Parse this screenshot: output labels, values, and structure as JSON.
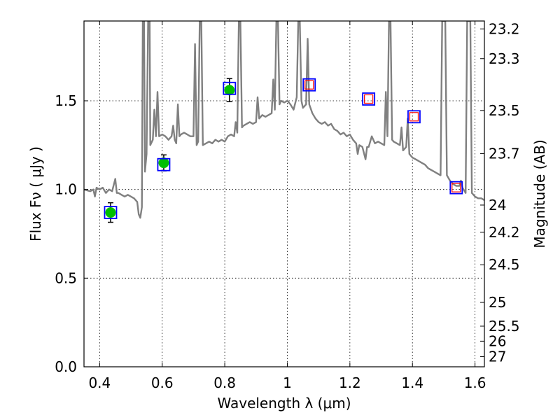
{
  "chart_data": {
    "type": "line",
    "xlabel": "Wavelength  λ (μm)",
    "ylabel": "Flux  Fν  ( μJy )",
    "ylabel_right": "Magnitude (AB)",
    "xlim": [
      0.35,
      1.63
    ],
    "ylim": [
      0.0,
      1.95
    ],
    "grid": true,
    "x_ticks": [
      0.4,
      0.6,
      0.8,
      1.0,
      1.2,
      1.4,
      1.6
    ],
    "x_tick_labels": [
      "0.4",
      "0.6",
      "0.8",
      "1",
      "1.2",
      "1.4",
      "1.6"
    ],
    "y_ticks": [
      0.0,
      0.5,
      1.0,
      1.5
    ],
    "y_tick_labels": [
      "0.0",
      "0.5",
      "1.0",
      "1.5"
    ],
    "right_ticks": [
      {
        "mag": 23.2,
        "label": "23.2"
      },
      {
        "mag": 23.3,
        "label": "23.3"
      },
      {
        "mag": 23.5,
        "label": "23.5"
      },
      {
        "mag": 23.7,
        "label": "23.7"
      },
      {
        "mag": 24.0,
        "label": "24"
      },
      {
        "mag": 24.2,
        "label": "24.2"
      },
      {
        "mag": 24.5,
        "label": "24.5"
      },
      {
        "mag": 25.0,
        "label": "25"
      },
      {
        "mag": 25.5,
        "label": "25.5"
      },
      {
        "mag": 26.0,
        "label": "26"
      },
      {
        "mag": 27.0,
        "label": "27"
      }
    ],
    "series": [
      {
        "type": "line",
        "color": "#808080",
        "points": [
          [
            0.35,
            1.0
          ],
          [
            0.37,
            0.99
          ],
          [
            0.38,
            1.0
          ],
          [
            0.385,
            0.96
          ],
          [
            0.39,
            1.01
          ],
          [
            0.4,
            1.0
          ],
          [
            0.41,
            1.01
          ],
          [
            0.42,
            0.98
          ],
          [
            0.43,
            1.0
          ],
          [
            0.44,
            0.99
          ],
          [
            0.45,
            1.06
          ],
          [
            0.455,
            0.98
          ],
          [
            0.46,
            0.98
          ],
          [
            0.47,
            0.97
          ],
          [
            0.48,
            0.96
          ],
          [
            0.49,
            0.97
          ],
          [
            0.5,
            0.96
          ],
          [
            0.51,
            0.95
          ],
          [
            0.52,
            0.93
          ],
          [
            0.525,
            0.86
          ],
          [
            0.53,
            0.84
          ],
          [
            0.535,
            0.9
          ],
          [
            0.538,
            1.95
          ],
          [
            0.542,
            1.95
          ],
          [
            0.545,
            1.1
          ],
          [
            0.55,
            1.2
          ],
          [
            0.555,
            1.95
          ],
          [
            0.56,
            1.95
          ],
          [
            0.562,
            1.25
          ],
          [
            0.57,
            1.28
          ],
          [
            0.575,
            1.45
          ],
          [
            0.58,
            1.3
          ],
          [
            0.585,
            1.55
          ],
          [
            0.59,
            1.3
          ],
          [
            0.6,
            1.31
          ],
          [
            0.61,
            1.3
          ],
          [
            0.62,
            1.28
          ],
          [
            0.63,
            1.3
          ],
          [
            0.635,
            1.36
          ],
          [
            0.64,
            1.28
          ],
          [
            0.645,
            1.26
          ],
          [
            0.65,
            1.48
          ],
          [
            0.655,
            1.3
          ],
          [
            0.66,
            1.31
          ],
          [
            0.67,
            1.32
          ],
          [
            0.68,
            1.31
          ],
          [
            0.69,
            1.3
          ],
          [
            0.7,
            1.3
          ],
          [
            0.705,
            1.82
          ],
          [
            0.71,
            1.25
          ],
          [
            0.715,
            1.27
          ],
          [
            0.72,
            1.95
          ],
          [
            0.725,
            1.95
          ],
          [
            0.73,
            1.25
          ],
          [
            0.74,
            1.26
          ],
          [
            0.75,
            1.27
          ],
          [
            0.76,
            1.26
          ],
          [
            0.77,
            1.28
          ],
          [
            0.78,
            1.27
          ],
          [
            0.79,
            1.28
          ],
          [
            0.8,
            1.27
          ],
          [
            0.81,
            1.3
          ],
          [
            0.82,
            1.31
          ],
          [
            0.83,
            1.3
          ],
          [
            0.835,
            1.38
          ],
          [
            0.84,
            1.32
          ],
          [
            0.845,
            1.95
          ],
          [
            0.85,
            1.95
          ],
          [
            0.855,
            1.35
          ],
          [
            0.86,
            1.36
          ],
          [
            0.87,
            1.37
          ],
          [
            0.88,
            1.38
          ],
          [
            0.89,
            1.37
          ],
          [
            0.9,
            1.38
          ],
          [
            0.905,
            1.52
          ],
          [
            0.91,
            1.4
          ],
          [
            0.92,
            1.42
          ],
          [
            0.93,
            1.41
          ],
          [
            0.94,
            1.42
          ],
          [
            0.95,
            1.43
          ],
          [
            0.955,
            1.62
          ],
          [
            0.96,
            1.45
          ],
          [
            0.965,
            1.95
          ],
          [
            0.97,
            1.95
          ],
          [
            0.975,
            1.48
          ],
          [
            0.98,
            1.5
          ],
          [
            0.99,
            1.49
          ],
          [
            1.0,
            1.5
          ],
          [
            1.01,
            1.48
          ],
          [
            1.02,
            1.45
          ],
          [
            1.03,
            1.52
          ],
          [
            1.035,
            1.95
          ],
          [
            1.04,
            1.95
          ],
          [
            1.045,
            1.5
          ],
          [
            1.05,
            1.46
          ],
          [
            1.06,
            1.48
          ],
          [
            1.065,
            1.85
          ],
          [
            1.07,
            1.48
          ],
          [
            1.08,
            1.43
          ],
          [
            1.09,
            1.4
          ],
          [
            1.1,
            1.38
          ],
          [
            1.11,
            1.37
          ],
          [
            1.12,
            1.38
          ],
          [
            1.13,
            1.36
          ],
          [
            1.14,
            1.37
          ],
          [
            1.15,
            1.34
          ],
          [
            1.16,
            1.33
          ],
          [
            1.17,
            1.31
          ],
          [
            1.18,
            1.32
          ],
          [
            1.19,
            1.3
          ],
          [
            1.2,
            1.31
          ],
          [
            1.21,
            1.28
          ],
          [
            1.22,
            1.26
          ],
          [
            1.225,
            1.2
          ],
          [
            1.23,
            1.25
          ],
          [
            1.24,
            1.24
          ],
          [
            1.25,
            1.17
          ],
          [
            1.255,
            1.24
          ],
          [
            1.26,
            1.24
          ],
          [
            1.27,
            1.3
          ],
          [
            1.28,
            1.26
          ],
          [
            1.29,
            1.27
          ],
          [
            1.3,
            1.26
          ],
          [
            1.31,
            1.25
          ],
          [
            1.315,
            1.55
          ],
          [
            1.32,
            1.3
          ],
          [
            1.325,
            1.95
          ],
          [
            1.33,
            1.95
          ],
          [
            1.335,
            1.28
          ],
          [
            1.34,
            1.27
          ],
          [
            1.35,
            1.26
          ],
          [
            1.36,
            1.25
          ],
          [
            1.365,
            1.35
          ],
          [
            1.37,
            1.22
          ],
          [
            1.38,
            1.24
          ],
          [
            1.385,
            1.4
          ],
          [
            1.39,
            1.2
          ],
          [
            1.4,
            1.18
          ],
          [
            1.41,
            1.17
          ],
          [
            1.42,
            1.16
          ],
          [
            1.43,
            1.15
          ],
          [
            1.44,
            1.14
          ],
          [
            1.45,
            1.12
          ],
          [
            1.46,
            1.11
          ],
          [
            1.47,
            1.1
          ],
          [
            1.48,
            1.09
          ],
          [
            1.49,
            1.08
          ],
          [
            1.495,
            1.95
          ],
          [
            1.505,
            1.95
          ],
          [
            1.51,
            1.08
          ],
          [
            1.52,
            1.05
          ],
          [
            1.53,
            1.03
          ],
          [
            1.54,
            1.02
          ],
          [
            1.55,
            1.02
          ],
          [
            1.555,
            1.05
          ],
          [
            1.56,
            1.01
          ],
          [
            1.57,
            0.98
          ],
          [
            1.575,
            1.95
          ],
          [
            1.585,
            1.95
          ],
          [
            1.59,
            0.98
          ],
          [
            1.6,
            0.96
          ],
          [
            1.61,
            0.95
          ],
          [
            1.62,
            0.95
          ],
          [
            1.63,
            0.94
          ]
        ]
      },
      {
        "type": "errorbar",
        "marker": "circle",
        "color": "#00bf00",
        "points": [
          {
            "x": 0.435,
            "y": 0.87,
            "yerr": 0.055
          },
          {
            "x": 0.605,
            "y": 1.15,
            "yerr": 0.045
          },
          {
            "x": 0.815,
            "y": 1.56,
            "yerr": 0.065
          }
        ]
      },
      {
        "type": "scatter",
        "marker": "square",
        "color": "#0000ff",
        "points": [
          [
            0.435,
            0.87
          ],
          [
            0.605,
            1.14
          ],
          [
            0.815,
            1.57
          ],
          [
            1.07,
            1.59
          ],
          [
            1.26,
            1.51
          ],
          [
            1.405,
            1.41
          ],
          [
            1.54,
            1.01
          ]
        ]
      },
      {
        "type": "scatter",
        "marker": "square",
        "color": "#ff0000",
        "points": [
          [
            1.07,
            1.59
          ],
          [
            1.26,
            1.51
          ],
          [
            1.405,
            1.41
          ],
          [
            1.54,
            1.01
          ]
        ]
      }
    ]
  }
}
